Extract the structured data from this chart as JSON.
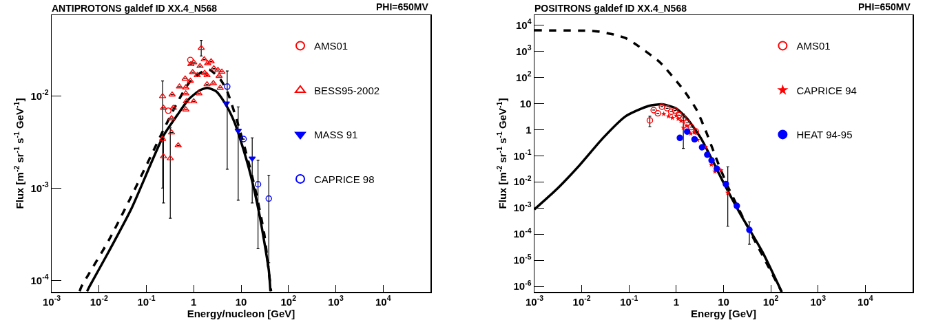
{
  "chart_data": [
    {
      "type": "scatter",
      "title": "ANTIPROTONS galdef ID XX.4_N568",
      "xlabel": "Energy/nucleon [GeV]",
      "ylabel": "Flux [m$^{-2}$ sr$^{-1}$ s$^{-1}$ GeV$^{-1}$]",
      "annotations": [
        "PHI=650MV"
      ],
      "log": "xy",
      "grid": false,
      "legend": "top right",
      "xlim": [
        0.001,
        100000
      ],
      "ylim": [
        7.5e-05,
        0.075
      ],
      "xticks": [
        {
          "value": 0.001,
          "label": "10$^{-3}$"
        },
        {
          "value": 0.01,
          "label": "10$^{-2}$"
        },
        {
          "value": 0.1,
          "label": "10$^{-1}$"
        },
        {
          "value": 1,
          "label": "1"
        },
        {
          "value": 10,
          "label": "10"
        },
        {
          "value": 100,
          "label": "10$^{2}$"
        },
        {
          "value": 1000,
          "label": "10$^{3}$"
        },
        {
          "value": 10000,
          "label": "10$^{4}$"
        }
      ],
      "yticks": [
        {
          "value": 0.0001,
          "label": "10$^{-4}$"
        },
        {
          "value": 0.001,
          "label": "10$^{-3}$"
        },
        {
          "value": 0.01,
          "label": "10$^{-2}$"
        }
      ],
      "series": [
        {
          "type": "line",
          "line_style": "solid",
          "marker": "none",
          "color": "#000000",
          "x": [
            0.0056,
            0.00619,
            0.016,
            0.0485,
            0.23,
            0.449,
            0.783,
            1.36,
            1.95,
            2.97,
            4.65,
            7.24,
            10.1,
            15.8,
            24.6,
            38.5,
            41.7
          ],
          "values": [
            7.6e-05,
            8.43e-05,
            0.000204,
            0.0006,
            0.0037,
            0.00617,
            0.00918,
            0.01153,
            0.01219,
            0.0112,
            0.0082,
            0.0052,
            0.00312,
            0.00141,
            0.000506,
            0.000129,
            7.6e-05
          ]
        },
        {
          "type": "line",
          "line_style": "dashed",
          "marker": "none",
          "color": "#000000",
          "x": [
            0.0039,
            0.0042,
            0.016,
            0.0485,
            0.23,
            0.449,
            0.783,
            1.36,
            2.13,
            3.72,
            5.19,
            8.09,
            12.6,
            19.7,
            30.8,
            42,
            43
          ],
          "values": [
            7.6e-05,
            8.43e-05,
            0.00027,
            0.00082,
            0.00427,
            0.00843,
            0.01368,
            0.01766,
            0.01923,
            0.0149,
            0.0109,
            0.0055,
            0.00248,
            0.001,
            0.00032,
            8.43e-05,
            7.6e-05
          ]
        },
        {
          "name": "AMS01",
          "marker": "circle",
          "color": "#ff0000",
          "x": [
            0.85,
            0.29
          ],
          "values": [
            0.0245,
            0.0069
          ]
        },
        {
          "name": "BESS95-2002",
          "marker": "triangle",
          "color": "#ff0000",
          "x": [
            0.22,
            0.23,
            0.35,
            0.37,
            0.34,
            0.34,
            0.22,
            0.47,
            0.23,
            0.32,
            0.5,
            0.66,
            0.68,
            0.68,
            0.7,
            0.68,
            0.85,
            0.87,
            1.0,
            0.95,
            1.0,
            1.19,
            1.29,
            1.36,
            1.44,
            1.67,
            1.7,
            1.97,
            1.91,
            1.91,
            2.33,
            2.66,
            2.6,
            3.25,
            3.44,
            3.93,
            3.63
          ],
          "values": [
            0.0099,
            0.0074,
            0.0103,
            0.0074,
            0.0057,
            0.004,
            0.0034,
            0.0029,
            0.0022,
            0.0021,
            0.0126,
            0.0153,
            0.0123,
            0.0106,
            0.0087,
            0.0071,
            0.0145,
            0.022,
            0.023,
            0.018,
            0.0087,
            0.0167,
            0.0106,
            0.021,
            0.033,
            0.0248,
            0.0177,
            0.0225,
            0.0167,
            0.0133,
            0.0236,
            0.0198,
            0.0137,
            0.019,
            0.0164,
            0.0182,
            0.0122
          ],
          "errors": [
            [
              0.001,
              0.0145
            ],
            null,
            null,
            null,
            null,
            null,
            null,
            null,
            [
              0.00069,
              0.0035
            ],
            [
              0.00047,
              0.0045
            ],
            null,
            null,
            null,
            null,
            null,
            null,
            null,
            null,
            null,
            null,
            null,
            null,
            null,
            null,
            [
              0.027,
              0.04
            ],
            null,
            null,
            null,
            null,
            null,
            null,
            null,
            null,
            null,
            null,
            null,
            null
          ]
        },
        {
          "name": "MASS 91",
          "marker": "triangle-down",
          "color": "#0000ff",
          "x": [
            4.9,
            8.7,
            17.2
          ],
          "values": [
            0.0083,
            0.0042,
            0.0021
          ],
          "errors": [
            null,
            [
              0.00074,
              0.0076
            ],
            [
              0.00069,
              0.0035
            ]
          ]
        },
        {
          "name": "CAPRICE 98",
          "marker": "circle",
          "color": "#0000ff",
          "x": [
            5.1,
            11.3,
            22.8,
            38.5
          ],
          "values": [
            0.0126,
            0.0034,
            0.0011,
            0.00077
          ],
          "errors": [
            [
              0.0016,
              0.0186
            ],
            null,
            [
              0.00022,
              0.002
            ],
            [
              0.000155,
              0.00138
            ]
          ]
        }
      ]
    },
    {
      "type": "scatter",
      "title": "POSITRONS galdef ID XX.4_N568",
      "xlabel": "Energy [GeV]",
      "ylabel": "Flux [m$^{-2}$ sr$^{-1}$ s$^{-1}$ GeV$^{-1}$]",
      "annotations": [
        "PHI=650MV"
      ],
      "log": "xy",
      "grid": false,
      "legend": "top right",
      "xlim": [
        0.001,
        100000
      ],
      "ylim": [
        6.2e-07,
        24000
      ],
      "xticks": [
        {
          "value": 0.001,
          "label": "10$^{-3}$"
        },
        {
          "value": 0.01,
          "label": "10$^{-2}$"
        },
        {
          "value": 0.1,
          "label": "10$^{-1}$"
        },
        {
          "value": 1,
          "label": "1"
        },
        {
          "value": 10,
          "label": "10"
        },
        {
          "value": 100,
          "label": "10$^{2}$"
        },
        {
          "value": 1000,
          "label": "10$^{3}$"
        },
        {
          "value": 10000,
          "label": "10$^{4}$"
        }
      ],
      "yticks": [
        {
          "value": 1e-06,
          "label": "10$^{-6}$"
        },
        {
          "value": 1e-05,
          "label": "10$^{-5}$"
        },
        {
          "value": 0.0001,
          "label": "10$^{-4}$"
        },
        {
          "value": 0.001,
          "label": "10$^{-3}$"
        },
        {
          "value": 0.01,
          "label": "10$^{-2}$"
        },
        {
          "value": 0.1,
          "label": "10$^{-1}$"
        },
        1,
        10,
        {
          "value": 100,
          "label": "10$^{2}$"
        },
        {
          "value": 1000,
          "label": "10$^{3}$"
        },
        {
          "value": 10000,
          "label": "10$^{4}$"
        }
      ],
      "series": [
        {
          "type": "line",
          "line_style": "solid",
          "marker": "none",
          "color": "#000000",
          "x": [
            0.001,
            0.00305,
            0.00925,
            0.0281,
            0.085,
            0.258,
            0.502,
            0.977,
            1.7,
            3.31,
            5.77,
            10.05,
            21.9,
            66.4,
            170
          ],
          "values": [
            0.00089,
            0.00552,
            0.0461,
            0.473,
            3.24,
            8.04,
            9.27,
            6.56,
            2.64,
            0.473,
            0.069,
            0.0091,
            0.00066,
            2.11e-05,
            6.2e-07
          ]
        },
        {
          "type": "line",
          "line_style": "dashed",
          "marker": "none",
          "color": "#000000",
          "x": [
            0.001,
            0.0161,
            0.0251,
            0.049,
            0.085,
            0.148,
            0.45,
            1.36,
            2.66,
            4.14,
            7.21,
            12.6,
            38.1,
            170
          ],
          "values": [
            6300,
            6000,
            5500,
            4300,
            3160,
            1700,
            376,
            36.7,
            5.93,
            0.96,
            0.069,
            0.0061,
            0.000107,
            6.2e-07
          ]
        },
        {
          "name": "AMS01",
          "marker": "circle",
          "color": "#ff0000",
          "x": [
            0.276,
            0.333,
            0.407,
            0.497,
            0.641,
            0.783,
            0.946,
            1.16,
            1.41,
            1.7,
            2.08,
            2.6
          ],
          "values": [
            2.25,
            5.58,
            4.21,
            7.56,
            6.56,
            4.84,
            5.36,
            3.58,
            2.81,
            1.84,
            1.25,
            0.851
          ],
          "errors": [
            [
              1.3,
              3.24
            ],
            null,
            null,
            null,
            null,
            null,
            null,
            null,
            null,
            null,
            null,
            null
          ]
        },
        {
          "name": "CAPRICE 94",
          "marker": "star",
          "color": "#ff0000",
          "x": [
            0.543,
            0.686,
            0.828,
            1.0,
            1.1,
            1.26,
            1.41,
            1.67,
            2.03,
            2.43,
            2.81,
            4.14,
            5.52,
            6.59,
            8.81,
            12.3
          ],
          "values": [
            3.96,
            3.23,
            2.81,
            3.44,
            2.59,
            2.16,
            1.18,
            1.38,
            0.709,
            0.785,
            0.402,
            0.219,
            0.0461,
            0.0251,
            0.0279,
            0.00383
          ],
          "errors": [
            null,
            null,
            null,
            null,
            null,
            null,
            [
              0.19,
              3.96
            ],
            null,
            null,
            null,
            null,
            null,
            null,
            null,
            null,
            [
              0.0002,
              0.038
            ]
          ]
        },
        {
          "name": "HEAT 94-95",
          "marker": "circle",
          "color": "#0000ff",
          "x": [
            1.19,
            1.7,
            2.43,
            3.51,
            4.52,
            5.58,
            7.21,
            11.2,
            19.1,
            35.2
          ],
          "values": [
            0.483,
            0.834,
            0.427,
            0.21,
            0.11,
            0.0664,
            0.0321,
            0.00826,
            0.00121,
            0.000145
          ],
          "errors": [
            null,
            null,
            null,
            null,
            null,
            null,
            null,
            null,
            null,
            [
              4.1e-05,
              0.000295
            ]
          ]
        }
      ]
    }
  ]
}
